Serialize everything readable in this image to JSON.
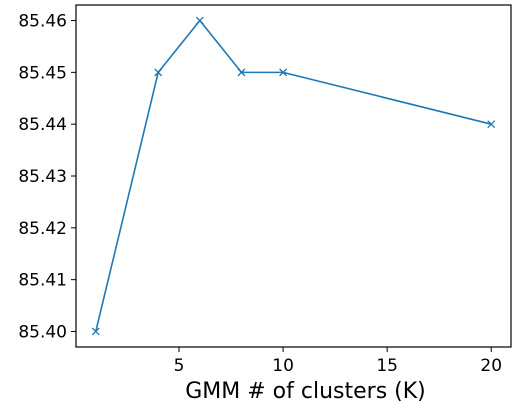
{
  "chart_data": {
    "type": "line",
    "title": "",
    "xlabel": "GMM # of clusters (K)",
    "ylabel": "",
    "xlim": [
      0.05,
      20.95
    ],
    "ylim": [
      85.397,
      85.463
    ],
    "xticks": [
      5,
      10,
      15,
      20
    ],
    "xtick_labels": [
      "5",
      "10",
      "15",
      "20"
    ],
    "yticks": [
      85.4,
      85.41,
      85.42,
      85.43,
      85.44,
      85.45,
      85.46
    ],
    "ytick_labels": [
      "85.40",
      "85.41",
      "85.42",
      "85.43",
      "85.44",
      "85.45",
      "85.46"
    ],
    "grid": false,
    "legend": "none",
    "series": [
      {
        "x": [
          1,
          4,
          6,
          8,
          10,
          20
        ],
        "y": [
          85.4,
          85.45,
          85.46,
          85.45,
          85.45,
          85.44
        ],
        "color": "#1f77b4",
        "marker": "x"
      }
    ]
  }
}
